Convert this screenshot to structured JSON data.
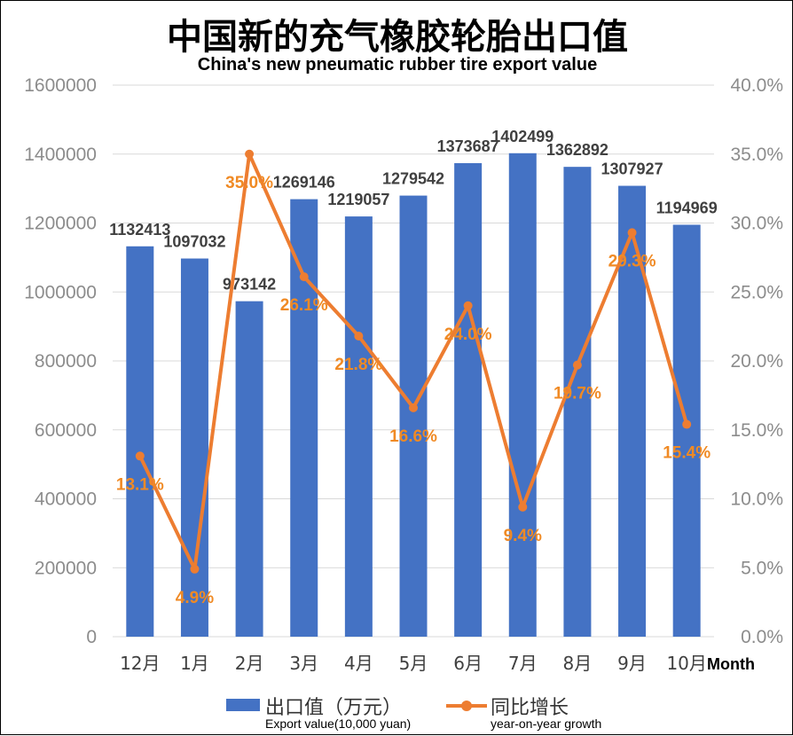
{
  "chart_data": {
    "type": "bar",
    "title": "中国新的充气橡胶轮胎出口值",
    "subtitle": "China's new pneumatic rubber tire export value",
    "xlabel": "Month",
    "categories": [
      "12月",
      "1月",
      "2月",
      "3月",
      "4月",
      "5月",
      "6月",
      "7月",
      "8月",
      "9月",
      "10月"
    ],
    "y_left": {
      "ylim": [
        0,
        1600000
      ],
      "ticks": [
        "0",
        "200000",
        "400000",
        "600000",
        "800000",
        "1000000",
        "1200000",
        "1400000",
        "1600000"
      ]
    },
    "y_right": {
      "ylim": [
        0,
        40
      ],
      "ticks": [
        "0.0%",
        "5.0%",
        "10.0%",
        "15.0%",
        "20.0%",
        "25.0%",
        "30.0%",
        "35.0%",
        "40.0%"
      ]
    },
    "grid": true,
    "legend_position": "bottom",
    "series": [
      {
        "name": "出口值（万元）",
        "name_en": "Export value(10,000 yuan)",
        "type": "bar",
        "axis": "left",
        "color": "#4472c4",
        "values": [
          1132413,
          1097032,
          973142,
          1269146,
          1219057,
          1279542,
          1373687,
          1402499,
          1362892,
          1307927,
          1194969
        ],
        "labels": [
          "1132413",
          "1097032",
          "973142",
          "1269146",
          "1219057",
          "1279542",
          "1373687",
          "1402499",
          "1362892",
          "1307927",
          "1194969"
        ]
      },
      {
        "name": "同比增长",
        "name_en": "year-on-year growth",
        "type": "line",
        "axis": "right",
        "color": "#ed7d31",
        "values": [
          13.1,
          4.9,
          35.0,
          26.1,
          21.8,
          16.6,
          24.0,
          9.4,
          19.7,
          29.3,
          15.4
        ],
        "labels": [
          "13.1%",
          "4.9%",
          "35.0%",
          "26.1%",
          "21.8%",
          "16.6%",
          "24.0%",
          "9.4%",
          "19.7%",
          "29.3%",
          "15.4%"
        ]
      }
    ]
  }
}
